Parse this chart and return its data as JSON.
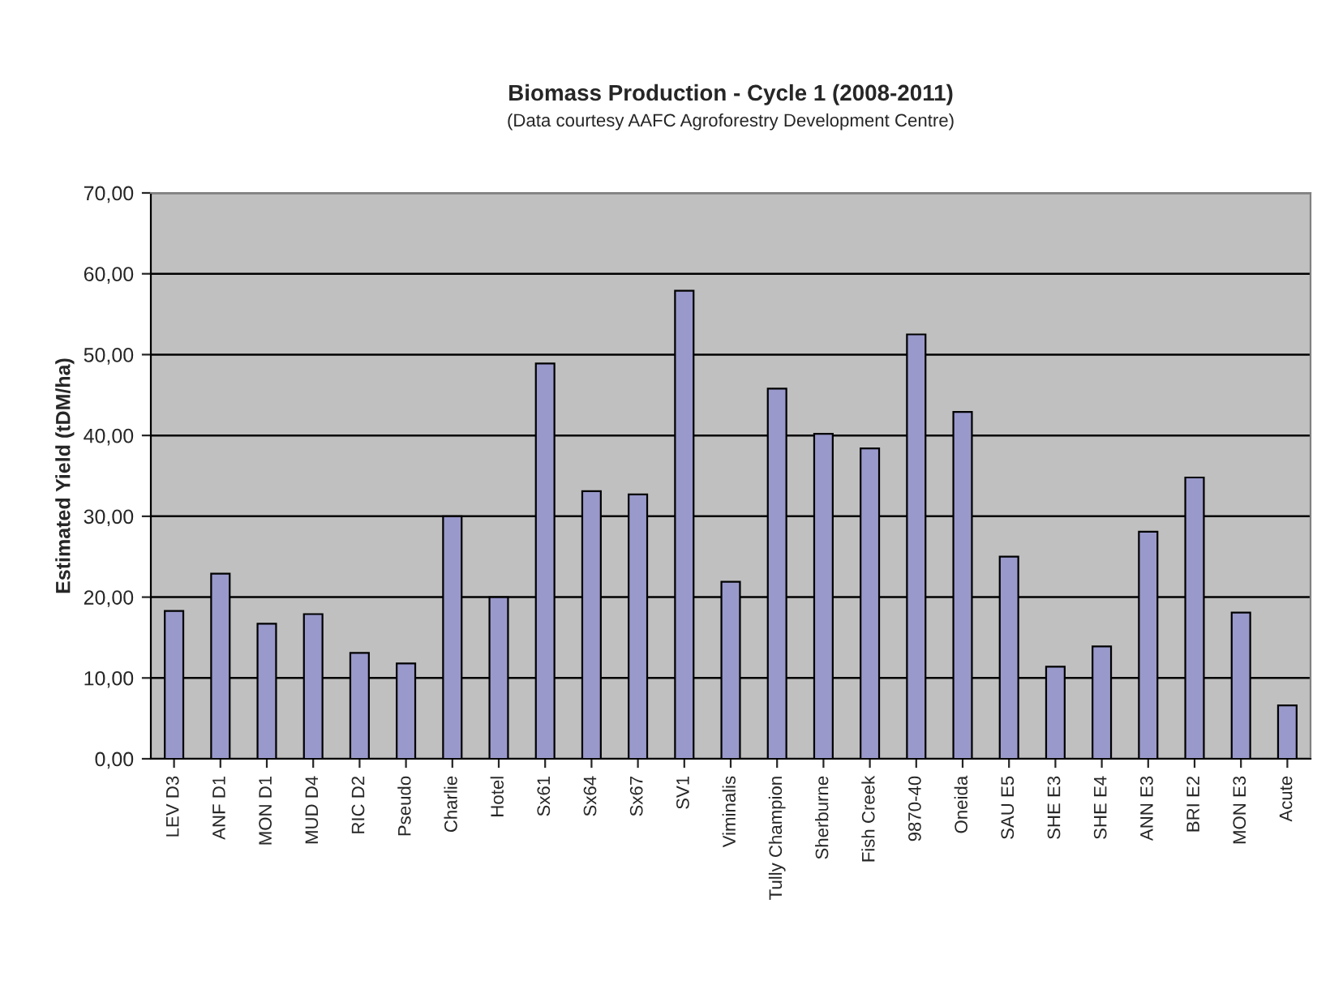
{
  "chart_data": {
    "type": "bar",
    "title": "Biomass Production - Cycle 1 (2008-2011)",
    "subtitle": "(Data courtesy AAFC Agroforestry Development Centre)",
    "ylabel": "Estimated Yield (tDM/ha)",
    "categories": [
      "LEV D3",
      "ANF D1",
      "MON D1",
      "MUD D4",
      "RIC D2",
      "Pseudo",
      "Charlie",
      "Hotel",
      "Sx61",
      "Sx64",
      "Sx67",
      "SV1",
      "Viminalis",
      "Tully Champion",
      "Sherburne",
      "Fish Creek",
      "9870-40",
      "Oneida",
      "SAU E5",
      "SHE E3",
      "SHE E4",
      "ANN E3",
      "BRI E2",
      "MON E3",
      "Acute"
    ],
    "values": [
      18.3,
      22.9,
      16.7,
      17.9,
      13.1,
      11.8,
      30.0,
      20.0,
      48.9,
      33.1,
      32.7,
      57.9,
      21.9,
      45.8,
      40.2,
      38.4,
      52.5,
      42.9,
      25.0,
      11.4,
      13.9,
      28.1,
      34.8,
      18.1,
      6.6
    ],
    "color": "#9999cc",
    "ylim": [
      0,
      70
    ],
    "yticks": [
      {
        "value": 0,
        "label": "0,00"
      },
      {
        "value": 10,
        "label": "10,00"
      },
      {
        "value": 20,
        "label": "20,00"
      },
      {
        "value": 30,
        "label": "30,00"
      },
      {
        "value": 40,
        "label": "40,00"
      },
      {
        "value": 50,
        "label": "50,00"
      },
      {
        "value": 60,
        "label": "60,00"
      },
      {
        "value": 70,
        "label": "70,00"
      }
    ],
    "grid": "y"
  }
}
